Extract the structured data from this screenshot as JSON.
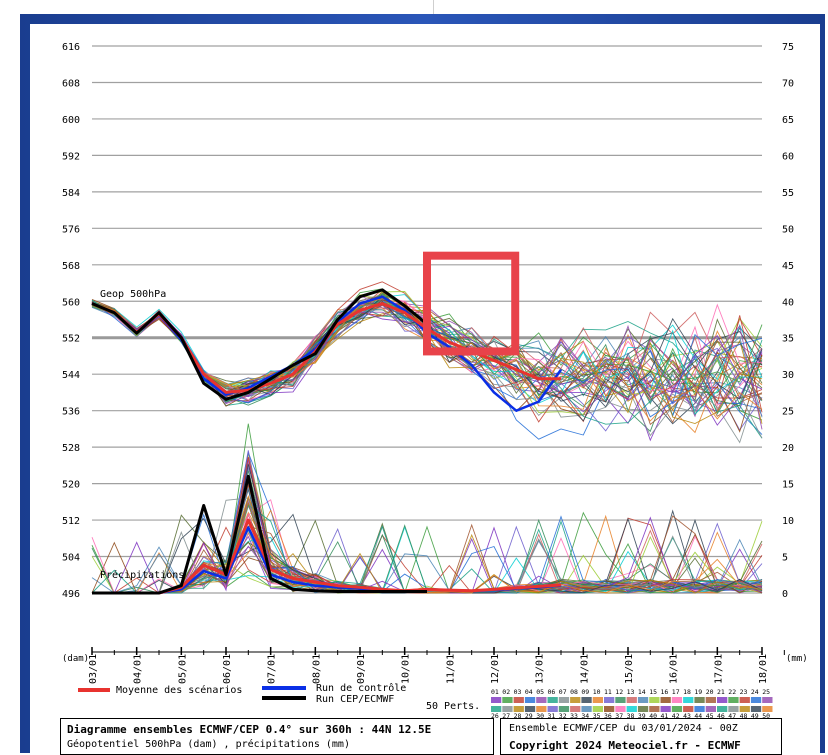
{
  "chart_data": {
    "type": "line",
    "left_axis": {
      "unit": "(dam)",
      "ticks": [
        616,
        608,
        600,
        592,
        584,
        576,
        568,
        560,
        552,
        544,
        536,
        528,
        520,
        512,
        504,
        496
      ],
      "range": [
        496,
        616
      ]
    },
    "right_axis": {
      "unit": "(mm)",
      "ticks": [
        75,
        70,
        65,
        60,
        55,
        50,
        45,
        40,
        35,
        30,
        25,
        20,
        15,
        10,
        5,
        0
      ],
      "range": [
        0,
        75
      ]
    },
    "x_ticks": [
      "03/01",
      "04/01",
      "05/01",
      "06/01",
      "07/01",
      "08/01",
      "09/01",
      "10/01",
      "11/01",
      "12/01",
      "13/01",
      "14/01",
      "15/01",
      "16/01",
      "17/01",
      "18/01"
    ],
    "geop_label": "Geop 500hPa",
    "precip_label": "Précipitations",
    "reference_line_dam": 552,
    "series": [
      {
        "name": "Moyenne des scénarios",
        "geop_dam": [
          559.5,
          557.5,
          553.2,
          557.2,
          552,
          544,
          540,
          540.5,
          542,
          544,
          549,
          555,
          558,
          559.5,
          557.5,
          554,
          551,
          549,
          547,
          545,
          543,
          543
        ],
        "precip_mm": [
          0,
          0,
          0,
          0,
          0.8,
          3.8,
          2.5,
          10,
          3.2,
          2,
          1.5,
          1,
          0.8,
          0.5,
          0.3,
          0.5,
          0.4,
          0.3,
          0.5,
          0.7,
          0.9,
          1.1
        ]
      },
      {
        "name": "Run CEP/ECMWF",
        "geop_dam": [
          559.5,
          557.5,
          553,
          557.5,
          552,
          542,
          538.5,
          540,
          543,
          546,
          548.5,
          556,
          561,
          562.5,
          559,
          555
        ],
        "precip_mm": [
          0,
          0,
          0,
          0,
          1,
          12,
          2.5,
          16,
          2,
          0.5,
          0.3,
          0.2,
          0.2,
          0.2,
          0.2,
          0.2
        ]
      },
      {
        "name": "Run de contrôle",
        "geop_dam": [
          559.5,
          557.5,
          553,
          557,
          551.5,
          543,
          539.5,
          541,
          543.5,
          546,
          549.5,
          555.5,
          559.5,
          561,
          558,
          553,
          550,
          546,
          540,
          536,
          538,
          545
        ],
        "precip_mm": [
          0,
          0,
          0,
          0,
          0.5,
          3,
          2,
          9,
          2.5,
          1.5,
          1,
          0.8,
          0.6,
          0.4,
          0.3,
          0.5,
          0.4,
          0.3,
          0.4,
          0.6,
          0.8,
          1
        ]
      }
    ],
    "members_count": 50,
    "highlight_box": {
      "x_range": [
        "10/01",
        "12/01"
      ],
      "y_range_dam": [
        549,
        570
      ]
    }
  },
  "legend": {
    "mean": "Moyenne des scénarios",
    "control": "Run de contrôle",
    "ecmwf": "Run CEP/ECMWF",
    "perts": "50 Perts.",
    "perts_row1": [
      "01",
      "02",
      "03",
      "04",
      "05",
      "06",
      "07",
      "08",
      "09",
      "10",
      "11",
      "12",
      "13",
      "14",
      "15",
      "16",
      "17",
      "18",
      "19",
      "20",
      "21",
      "22",
      "23",
      "24",
      "25"
    ],
    "perts_row2": [
      "26",
      "27",
      "28",
      "29",
      "30",
      "31",
      "32",
      "33",
      "34",
      "35",
      "36",
      "37",
      "38",
      "39",
      "40",
      "41",
      "42",
      "43",
      "44",
      "45",
      "46",
      "47",
      "48",
      "49",
      "50"
    ]
  },
  "footer": {
    "title_line1": "Diagramme ensembles ECMWF/CEP 0.4° sur 360h : 44N 12.5E",
    "title_line2": "Géopotentiel 500hPa (dam) , précipitations (mm)",
    "ensemble_line": "Ensemble ECMWF/CEP du 03/01/2024 - 00Z",
    "copyright": "Copyright 2024 Meteociel.fr - ECMWF"
  },
  "colors": {
    "mean": "#e8332f",
    "control": "#0a2fe6",
    "ecmwf": "#000000",
    "highlight": "#e8434a",
    "frame": "#1f48a8",
    "grid": "#a0a0a0"
  }
}
